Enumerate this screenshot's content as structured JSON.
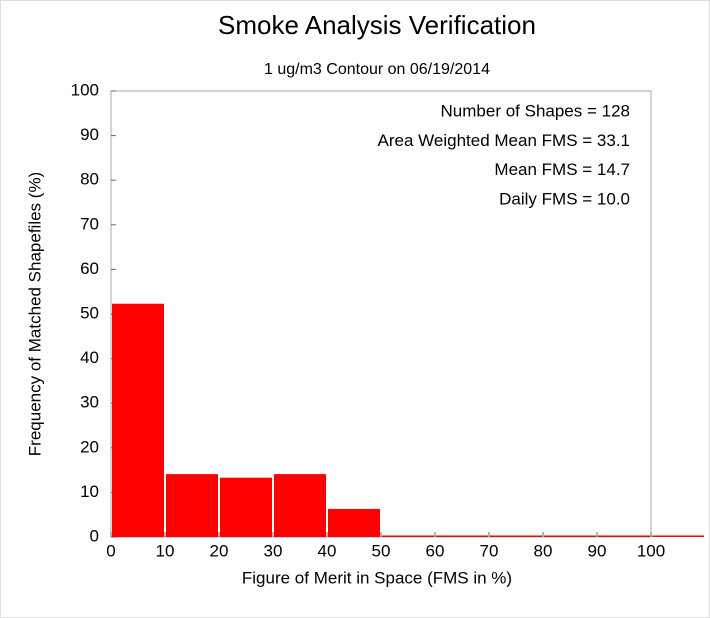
{
  "chart_data": {
    "type": "histogram",
    "title": "Smoke Analysis Verification",
    "subtitle": "1 ug/m3 Contour on 06/19/2014",
    "x_label": "Figure of Merit in Space (FMS in %)",
    "y_label": "Frequency of Matched Shapefiles (%)",
    "bins": [
      0,
      10,
      20,
      30,
      40,
      50,
      60,
      70,
      80,
      90,
      100,
      110
    ],
    "values": [
      52.3,
      14.1,
      13.3,
      14.1,
      6.3,
      0,
      0,
      0,
      0,
      0,
      0
    ],
    "color": "#ff0000",
    "xlim": [
      0,
      100
    ],
    "ylim": [
      0,
      100
    ],
    "xticks": [
      0,
      10,
      20,
      30,
      40,
      50,
      60,
      70,
      80,
      90,
      100
    ],
    "yticks": [
      0,
      10,
      20,
      30,
      40,
      50,
      60,
      70,
      80,
      90,
      100
    ],
    "annotations": [
      "Number of Shapes = 128",
      "Area Weighted Mean FMS = 33.1",
      "Mean FMS = 14.7",
      "Daily FMS = 10.0"
    ]
  }
}
